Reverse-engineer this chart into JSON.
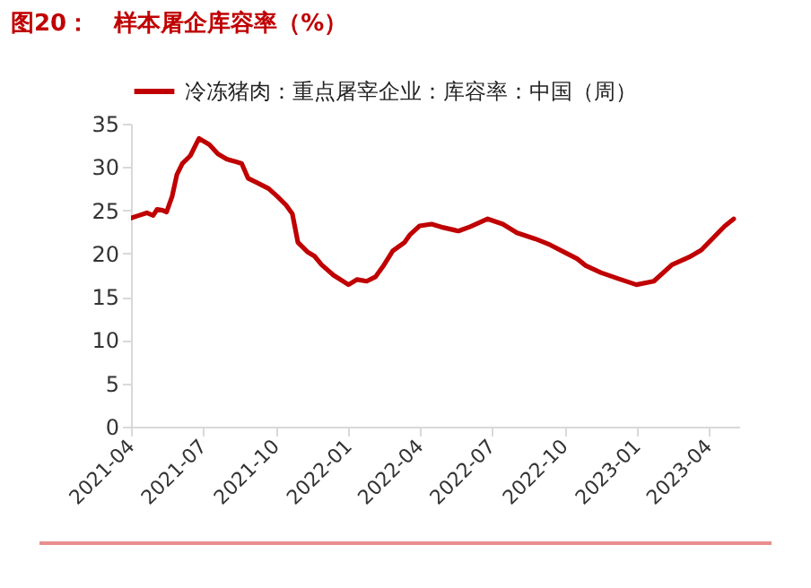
{
  "chart_data": {
    "type": "line",
    "title": "图20：   样本屠企库容率（%）",
    "x": [
      "2021-04-01",
      "2021-04-11",
      "2021-04-21",
      "2021-04-29",
      "2021-05-04",
      "2021-05-11",
      "2021-05-16",
      "2021-05-23",
      "2021-05-29",
      "2021-06-05",
      "2021-06-15",
      "2021-06-26",
      "2021-07-09",
      "2021-07-20",
      "2021-07-31",
      "2021-08-12",
      "2021-08-19",
      "2021-08-27",
      "2021-09-07",
      "2021-09-22",
      "2021-10-03",
      "2021-10-14",
      "2021-10-22",
      "2021-10-29",
      "2021-11-10",
      "2021-11-19",
      "2021-11-28",
      "2021-12-13",
      "2022-01-01",
      "2022-01-12",
      "2022-01-24",
      "2022-02-04",
      "2022-02-15",
      "2022-02-26",
      "2022-03-13",
      "2022-03-20",
      "2022-04-01",
      "2022-04-16",
      "2022-05-01",
      "2022-05-20",
      "2022-06-04",
      "2022-06-26",
      "2022-07-15",
      "2022-08-02",
      "2022-08-25",
      "2022-09-13",
      "2022-10-02",
      "2022-10-17",
      "2022-10-28",
      "2022-11-16",
      "2022-12-08",
      "2022-12-31",
      "2023-01-22",
      "2023-02-14",
      "2023-03-08",
      "2023-03-23",
      "2023-04-07",
      "2023-04-22",
      "2023-05-03"
    ],
    "series": [
      {
        "name": "冷冻猪肉：重点屠宰企业：库容率：中国（周）",
        "color": "#c00000",
        "values": [
          24.1,
          24.4,
          24.7,
          24.4,
          25.1,
          25.0,
          24.8,
          26.6,
          29.1,
          30.4,
          31.3,
          33.3,
          32.6,
          31.5,
          30.9,
          30.6,
          30.4,
          28.7,
          28.2,
          27.5,
          26.6,
          25.6,
          24.6,
          21.3,
          20.2,
          19.7,
          18.7,
          17.5,
          16.4,
          17.0,
          16.8,
          17.3,
          18.7,
          20.3,
          21.3,
          22.2,
          23.2,
          23.4,
          23.0,
          22.6,
          23.1,
          24.0,
          23.4,
          22.4,
          21.7,
          21.0,
          20.1,
          19.4,
          18.6,
          17.8,
          17.1,
          16.4,
          16.8,
          18.7,
          19.6,
          20.4,
          21.8,
          23.2,
          24.0
        ]
      }
    ],
    "xlim": [
      "2021-04-01",
      "2023-05-10"
    ],
    "xticks": [
      "2021-04",
      "2021-07",
      "2021-10",
      "2022-01",
      "2022-04",
      "2022-07",
      "2022-10",
      "2023-01",
      "2023-04"
    ],
    "ylim": [
      0,
      35
    ],
    "yticks": [
      0,
      5,
      10,
      15,
      20,
      25,
      30,
      35
    ],
    "grid": false,
    "legend": "top",
    "marker": "none",
    "line_style": "solid"
  }
}
